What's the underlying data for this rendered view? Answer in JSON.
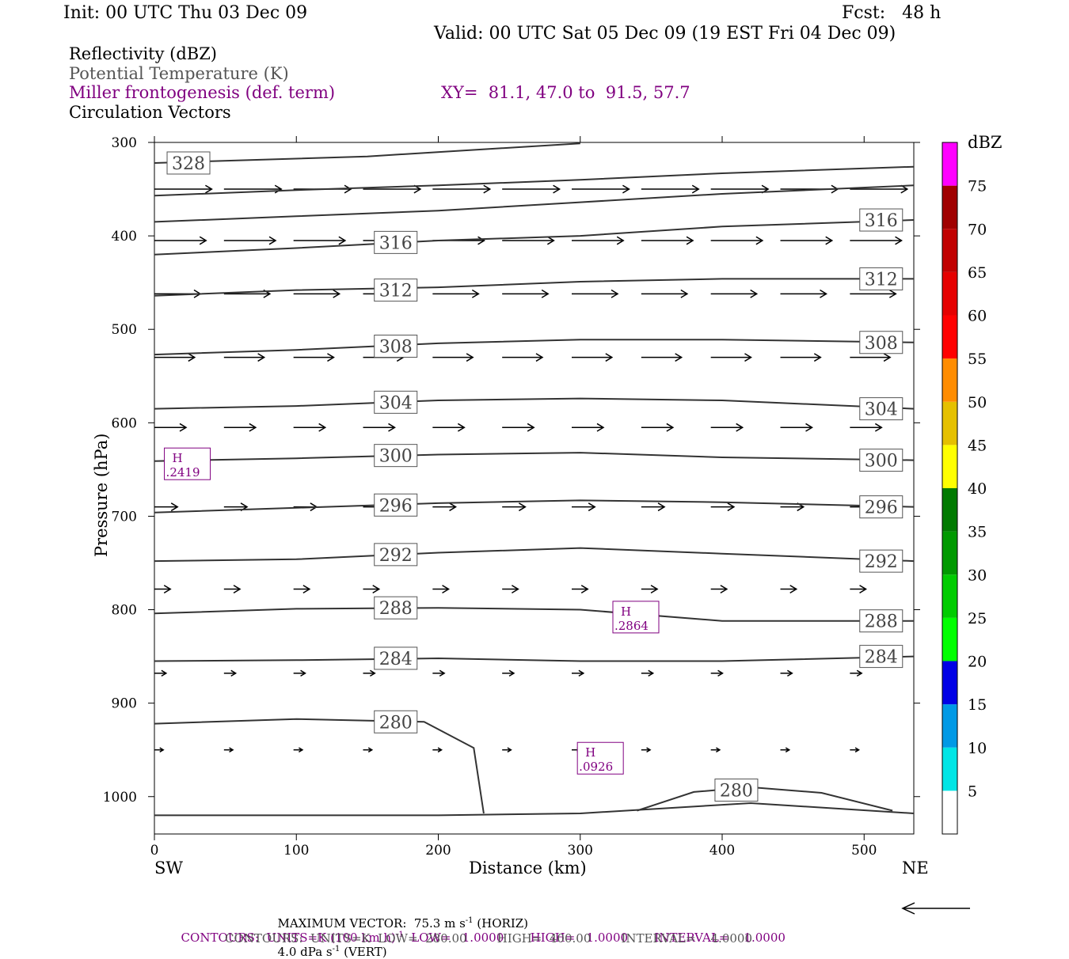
{
  "header": {
    "init": "Init: 00 UTC Thu 03 Dec 09",
    "fcst": "Fcst:   48 h",
    "valid": "Valid: 00 UTC Sat 05 Dec 09 (19 EST Fri 04 Dec 09)"
  },
  "fields": {
    "reflectivity": "Reflectivity (dBZ)",
    "theta": "Potential Temperature (K)",
    "miller": "Miller frontogenesis (def. term)",
    "xy": "XY=  81.1, 47.0 to  91.5, 57.7",
    "circulation": "Circulation Vectors"
  },
  "colors": {
    "purple": "#800080",
    "theta_line": "#333333",
    "dbz_bins": [
      "#ffffff",
      "#00e5e5",
      "#0099e5",
      "#0000e5",
      "#00ff00",
      "#00cc00",
      "#009900",
      "#007a00",
      "#ffff00",
      "#e5c000",
      "#ff8c00",
      "#ff0000",
      "#e50000",
      "#c00000",
      "#a00000",
      "#ff00ff",
      "#9a5fc8",
      "#ffffff"
    ]
  },
  "colorbar": {
    "unit": "dBZ",
    "labels": [
      "5",
      "10",
      "15",
      "20",
      "25",
      "30",
      "35",
      "40",
      "45",
      "50",
      "55",
      "60",
      "65",
      "70",
      "75"
    ]
  },
  "axis_labels": {
    "ylabel": "Pressure (hPa)",
    "xlabel": "Distance (km)",
    "left_end": "SW",
    "right_end": "NE"
  },
  "footer": {
    "max_vector_a": "MAXIMUM VECTOR:  75.3 m s",
    "max_vector_b": " (HORIZ)",
    "max_vector_c": "4.0 dPa s",
    "max_vector_d": " (VERT)",
    "sup": "-1",
    "contours1_a": "CONTOURS:  UNITS=K (100 km h)",
    "contours1_b": "  LOW=   1.0000       HIGH=   1.0000       INTERVAL=    1.0000",
    "contours2": "CONTOURS:  UNITS=K  LOW=  280.00        HIGH=  400.00        INTERVAL=    4.0000",
    "ref_arrow": "ref-vector-arrow"
  },
  "chart_data": {
    "type": "cross-section",
    "x": {
      "label": "Distance (km)",
      "range": [
        0,
        535
      ],
      "ticks": [
        0,
        100,
        200,
        300,
        400,
        500
      ]
    },
    "y": {
      "label": "Pressure (hPa)",
      "range": [
        1040,
        300
      ],
      "ticks": [
        300,
        400,
        500,
        600,
        700,
        800,
        900,
        1000
      ]
    },
    "theta_contours": [
      {
        "value": 328,
        "label": "328",
        "points": [
          [
            0,
            322
          ],
          [
            150,
            315
          ],
          [
            300,
            301
          ]
        ],
        "labels_at": [
          [
            24,
            322
          ]
        ]
      },
      {
        "value": 324,
        "label": "",
        "points": [
          [
            0,
            357
          ],
          [
            100,
            351
          ],
          [
            200,
            346
          ],
          [
            300,
            340
          ],
          [
            400,
            333
          ],
          [
            535,
            326
          ]
        ],
        "labels_at": []
      },
      {
        "value": 320,
        "label": "",
        "points": [
          [
            0,
            385
          ],
          [
            100,
            379
          ],
          [
            200,
            373
          ],
          [
            300,
            364
          ],
          [
            400,
            355
          ],
          [
            535,
            346
          ]
        ],
        "labels_at": []
      },
      {
        "value": 316,
        "label": "316",
        "points": [
          [
            0,
            420
          ],
          [
            100,
            413
          ],
          [
            200,
            405
          ],
          [
            300,
            400
          ],
          [
            400,
            390
          ],
          [
            535,
            383
          ]
        ],
        "labels_at": [
          [
            170,
            407
          ],
          [
            512,
            383
          ]
        ]
      },
      {
        "value": 312,
        "label": "312",
        "points": [
          [
            0,
            464
          ],
          [
            100,
            458
          ],
          [
            200,
            455
          ],
          [
            300,
            449
          ],
          [
            400,
            446
          ],
          [
            535,
            446
          ]
        ],
        "labels_at": [
          [
            170,
            458
          ],
          [
            512,
            446
          ]
        ]
      },
      {
        "value": 308,
        "label": "308",
        "points": [
          [
            0,
            527
          ],
          [
            100,
            522
          ],
          [
            200,
            515
          ],
          [
            300,
            511
          ],
          [
            400,
            511
          ],
          [
            535,
            514
          ]
        ],
        "labels_at": [
          [
            170,
            518
          ],
          [
            512,
            514
          ]
        ]
      },
      {
        "value": 304,
        "label": "304",
        "points": [
          [
            0,
            585
          ],
          [
            100,
            582
          ],
          [
            200,
            576
          ],
          [
            300,
            574
          ],
          [
            400,
            576
          ],
          [
            535,
            585
          ]
        ],
        "labels_at": [
          [
            170,
            578
          ],
          [
            512,
            585
          ]
        ]
      },
      {
        "value": 300,
        "label": "300",
        "points": [
          [
            0,
            641
          ],
          [
            100,
            638
          ],
          [
            200,
            634
          ],
          [
            300,
            632
          ],
          [
            400,
            637
          ],
          [
            535,
            640
          ]
        ],
        "labels_at": [
          [
            170,
            635
          ],
          [
            512,
            640
          ]
        ]
      },
      {
        "value": 296,
        "label": "296",
        "points": [
          [
            0,
            696
          ],
          [
            100,
            691
          ],
          [
            200,
            686
          ],
          [
            300,
            683
          ],
          [
            400,
            685
          ],
          [
            535,
            690
          ]
        ],
        "labels_at": [
          [
            170,
            688
          ],
          [
            512,
            690
          ]
        ]
      },
      {
        "value": 292,
        "label": "292",
        "points": [
          [
            0,
            748
          ],
          [
            100,
            746
          ],
          [
            200,
            739
          ],
          [
            300,
            734
          ],
          [
            400,
            740
          ],
          [
            535,
            748
          ]
        ],
        "labels_at": [
          [
            170,
            741
          ],
          [
            512,
            748
          ]
        ]
      },
      {
        "value": 288,
        "label": "288",
        "points": [
          [
            0,
            804
          ],
          [
            100,
            799
          ],
          [
            200,
            798
          ],
          [
            300,
            800
          ],
          [
            400,
            812
          ],
          [
            535,
            812
          ]
        ],
        "labels_at": [
          [
            170,
            798
          ],
          [
            512,
            812
          ]
        ]
      },
      {
        "value": 284,
        "label": "284",
        "points": [
          [
            0,
            855
          ],
          [
            100,
            854
          ],
          [
            200,
            852
          ],
          [
            300,
            855
          ],
          [
            400,
            855
          ],
          [
            535,
            850
          ]
        ],
        "labels_at": [
          [
            170,
            852
          ],
          [
            512,
            850
          ]
        ]
      },
      {
        "value": 280,
        "label": "280",
        "points": [
          [
            0,
            922
          ],
          [
            100,
            917
          ],
          [
            190,
            920
          ],
          [
            225,
            948
          ],
          [
            232,
            1018
          ]
        ],
        "labels_at": [
          [
            170,
            920
          ]
        ]
      },
      {
        "value": 280,
        "label": "280",
        "points": [
          [
            340,
            1015
          ],
          [
            380,
            995
          ],
          [
            420,
            990
          ],
          [
            470,
            996
          ],
          [
            520,
            1015
          ]
        ],
        "labels_at": [
          [
            410,
            993
          ]
        ]
      },
      {
        "value": 276,
        "label": "",
        "points": [
          [
            0,
            1020
          ],
          [
            200,
            1020
          ],
          [
            300,
            1018
          ],
          [
            420,
            1007
          ],
          [
            535,
            1018
          ]
        ],
        "labels_at": []
      }
    ],
    "frontogenesis_maxima": [
      {
        "label": "H",
        "value": ".2419",
        "x": 7,
        "p": 649
      },
      {
        "label": "H",
        "value": ".2864",
        "x": 323,
        "p": 813
      },
      {
        "label": "H",
        "value": ".0926",
        "x": 298,
        "p": 964
      }
    ],
    "vector_rows": [
      {
        "p": 350,
        "len": 38,
        "dy": 0
      },
      {
        "p": 405,
        "len": 34,
        "dy": 0
      },
      {
        "p": 462,
        "len": 30,
        "dy": 0
      },
      {
        "p": 530,
        "len": 26,
        "dy": 0
      },
      {
        "p": 605,
        "len": 20,
        "dy": 0
      },
      {
        "p": 690,
        "len": 14,
        "dy": 0
      },
      {
        "p": 778,
        "len": 9,
        "dy": 0
      },
      {
        "p": 868,
        "len": 6,
        "dy": 0
      },
      {
        "p": 950,
        "len": 4,
        "dy": 0
      }
    ],
    "vector_columns_km": [
      0,
      49,
      98,
      147,
      196,
      245,
      294,
      343,
      392,
      441,
      490
    ]
  }
}
